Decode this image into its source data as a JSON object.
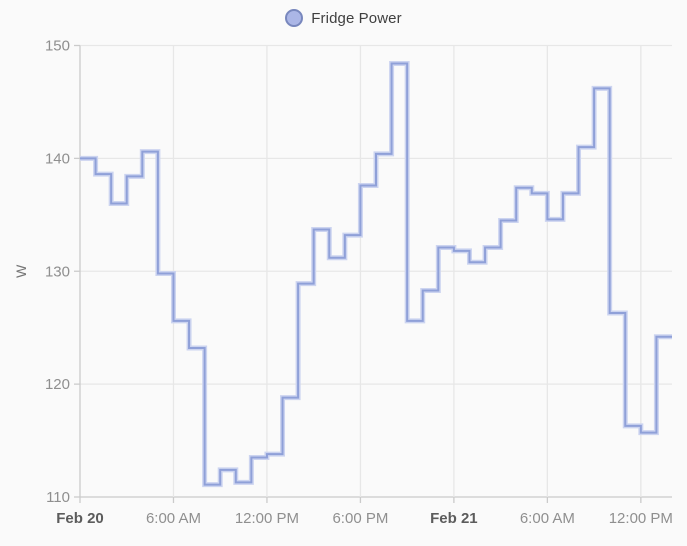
{
  "legend": {
    "label": "Fridge Power"
  },
  "chart_data": {
    "type": "line",
    "step": true,
    "title": "",
    "series": [
      {
        "name": "Fridge Power",
        "unit": "W",
        "interval_hours": 1,
        "values": [
          140.0,
          138.6,
          136.0,
          138.4,
          140.6,
          129.8,
          125.6,
          123.2,
          111.1,
          112.4,
          111.3,
          113.5,
          113.8,
          118.8,
          128.9,
          133.7,
          131.2,
          133.2,
          137.6,
          140.4,
          148.4,
          125.6,
          128.3,
          132.1,
          131.8,
          130.8,
          132.1,
          134.5,
          137.4,
          136.9,
          134.6,
          136.9,
          141.0,
          146.2,
          126.3,
          116.3,
          115.7,
          124.2
        ]
      }
    ],
    "x_total_hours": 38,
    "x_ticks": [
      {
        "hour": 0,
        "label": "Feb 20",
        "bold": true
      },
      {
        "hour": 6,
        "label": "6:00 AM",
        "bold": false
      },
      {
        "hour": 12,
        "label": "12:00 PM",
        "bold": false
      },
      {
        "hour": 18,
        "label": "6:00 PM",
        "bold": false
      },
      {
        "hour": 24,
        "label": "Feb 21",
        "bold": true
      },
      {
        "hour": 30,
        "label": "6:00 AM",
        "bold": false
      },
      {
        "hour": 36,
        "label": "12:00 PM",
        "bold": false
      }
    ],
    "ylabel": "W",
    "ylim": [
      110,
      150
    ],
    "y_ticks": [
      110,
      120,
      130,
      140,
      150
    ],
    "grid": true,
    "legend_position": "top",
    "colors": {
      "line": "#8fa0d8",
      "line_halo": "#ccd4f0",
      "marker_fill": "#abb6e6",
      "marker_border": "#7887bd",
      "grid": "#e7e7e7",
      "axis": "#cbcbcb",
      "tick_label": "#8f8f8f",
      "tick_label_bold": "#5c5c5c",
      "unit_label": "#757575",
      "background": "#fafafa"
    }
  }
}
